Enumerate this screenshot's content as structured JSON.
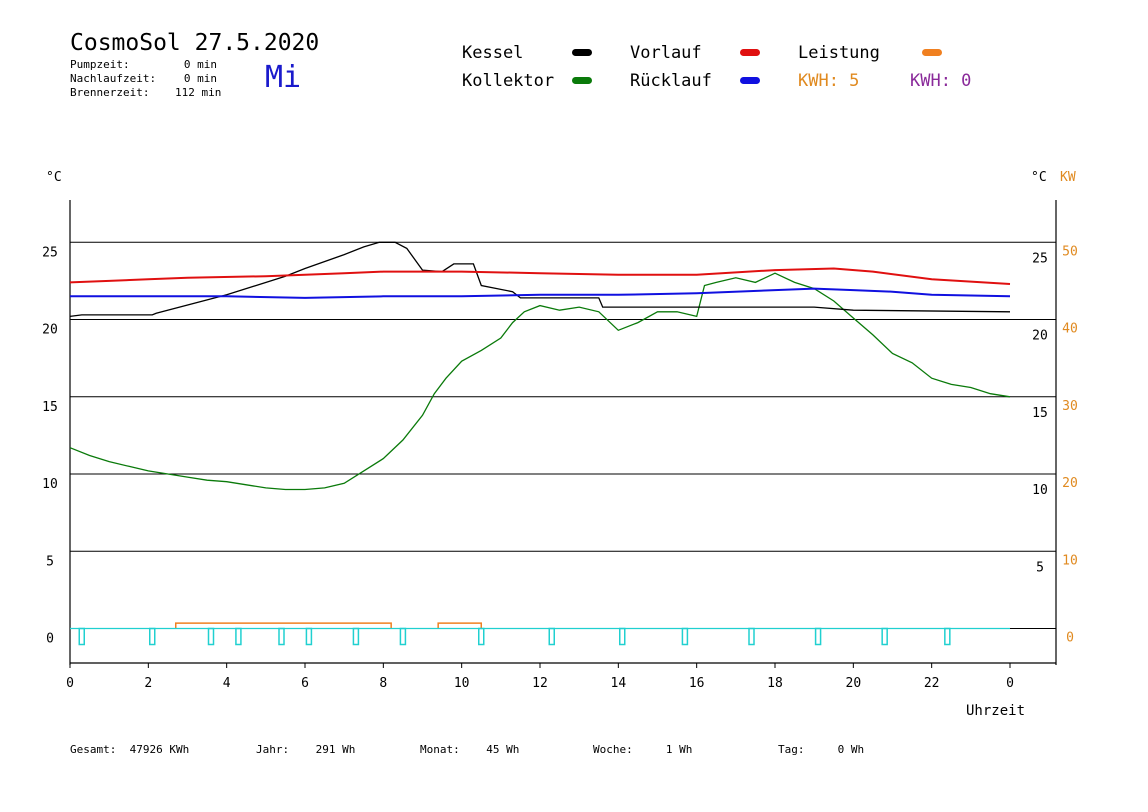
{
  "header": {
    "title": "CosmoSol 27.5.2020",
    "day": "Mi",
    "stats": [
      {
        "label": "Pumpzeit:",
        "value": "0 min"
      },
      {
        "label": "Nachlaufzeit:",
        "value": "0 min"
      },
      {
        "label": "Brennerzeit:",
        "value": "112 min"
      }
    ]
  },
  "legend": {
    "kessel": "Kessel",
    "kollektor": "Kollektor",
    "vorlauf": "Vorlauf",
    "ruecklauf": "Rücklauf",
    "leistung": "Leistung",
    "kwh_solar": "KWH: 5",
    "kwh_other": "KWH: 0"
  },
  "colors": {
    "kessel": "#000000",
    "kollektor": "#0a7a0a",
    "vorlauf": "#e01010",
    "ruecklauf": "#1010e0",
    "leistung": "#f08020",
    "pump": "#20d0d0",
    "kwh_other": "#8a2a9a"
  },
  "footer": [
    {
      "label": "Gesamt:",
      "value": "47926 KWh"
    },
    {
      "label": "Jahr:",
      "value": "291 Wh"
    },
    {
      "label": "Monat:",
      "value": "45 Wh"
    },
    {
      "label": "Woche:",
      "value": "1 Wh"
    },
    {
      "label": "Tag:",
      "value": "0 Wh"
    }
  ],
  "chart_data": {
    "type": "line",
    "xlabel": "Uhrzeit",
    "ylabel_left": "°C",
    "ylabel_right": "°C",
    "ylabel_right2": "KW",
    "xlim": [
      0,
      24
    ],
    "ylim": [
      -2,
      28
    ],
    "x_ticks": [
      "0",
      "2",
      "4",
      "6",
      "8",
      "10",
      "12",
      "14",
      "16",
      "18",
      "20",
      "22",
      "0"
    ],
    "y_ticks_left": [
      0,
      5,
      10,
      15,
      20,
      25
    ],
    "y_ticks_right": [
      5,
      10,
      15,
      20,
      25
    ],
    "y_ticks_kw": [
      0,
      10,
      20,
      30,
      40,
      50
    ],
    "grid_y": [
      0,
      5,
      10,
      15,
      20,
      25
    ],
    "series": [
      {
        "name": "Kollektor",
        "color_key": "kollektor",
        "points": [
          [
            0,
            11.7
          ],
          [
            0.5,
            11.2
          ],
          [
            1,
            10.8
          ],
          [
            1.5,
            10.5
          ],
          [
            2,
            10.2
          ],
          [
            2.5,
            10
          ],
          [
            3,
            9.8
          ],
          [
            3.5,
            9.6
          ],
          [
            4,
            9.5
          ],
          [
            4.5,
            9.3
          ],
          [
            5,
            9.1
          ],
          [
            5.5,
            9
          ],
          [
            6,
            9
          ],
          [
            6.5,
            9.1
          ],
          [
            7,
            9.4
          ],
          [
            7.5,
            10.2
          ],
          [
            8,
            11
          ],
          [
            8.5,
            12.2
          ],
          [
            9,
            13.8
          ],
          [
            9.3,
            15.2
          ],
          [
            9.6,
            16.2
          ],
          [
            10,
            17.3
          ],
          [
            10.5,
            18
          ],
          [
            11,
            18.8
          ],
          [
            11.3,
            19.8
          ],
          [
            11.6,
            20.5
          ],
          [
            12,
            20.9
          ],
          [
            12.5,
            20.6
          ],
          [
            13,
            20.8
          ],
          [
            13.5,
            20.5
          ],
          [
            14,
            19.3
          ],
          [
            14.5,
            19.8
          ],
          [
            15,
            20.5
          ],
          [
            15.5,
            20.5
          ],
          [
            16,
            20.2
          ],
          [
            16.2,
            22.2
          ],
          [
            16.5,
            22.4
          ],
          [
            17,
            22.7
          ],
          [
            17.5,
            22.4
          ],
          [
            18,
            23
          ],
          [
            18.5,
            22.4
          ],
          [
            19,
            22
          ],
          [
            19.5,
            21.2
          ],
          [
            20,
            20.1
          ],
          [
            20.5,
            19
          ],
          [
            21,
            17.8
          ],
          [
            21.5,
            17.2
          ],
          [
            22,
            16.2
          ],
          [
            22.5,
            15.8
          ],
          [
            23,
            15.6
          ],
          [
            23.5,
            15.2
          ],
          [
            24,
            15
          ]
        ]
      },
      {
        "name": "Kessel",
        "color_key": "kessel",
        "points": [
          [
            0,
            20.2
          ],
          [
            0.3,
            20.3
          ],
          [
            2.1,
            20.3
          ],
          [
            2.2,
            20.4
          ],
          [
            4,
            21.6
          ],
          [
            5.5,
            22.8
          ],
          [
            6,
            23.3
          ],
          [
            7,
            24.2
          ],
          [
            7.5,
            24.7
          ],
          [
            7.9,
            25
          ],
          [
            8.3,
            25
          ],
          [
            8.6,
            24.6
          ],
          [
            9,
            23.2
          ],
          [
            9.5,
            23.1
          ],
          [
            9.8,
            23.6
          ],
          [
            10.3,
            23.6
          ],
          [
            10.5,
            22.2
          ],
          [
            11.3,
            21.8
          ],
          [
            11.5,
            21.4
          ],
          [
            13.5,
            21.4
          ],
          [
            13.6,
            20.8
          ],
          [
            18,
            20.8
          ],
          [
            19,
            20.8
          ],
          [
            20,
            20.6
          ],
          [
            24,
            20.5
          ]
        ]
      },
      {
        "name": "Vorlauf",
        "color_key": "vorlauf",
        "points": [
          [
            0,
            22.4
          ],
          [
            1,
            22.5
          ],
          [
            2,
            22.6
          ],
          [
            3,
            22.7
          ],
          [
            5,
            22.8
          ],
          [
            7,
            23
          ],
          [
            8,
            23.1
          ],
          [
            10,
            23.1
          ],
          [
            12,
            23
          ],
          [
            14,
            22.9
          ],
          [
            16,
            22.9
          ],
          [
            18,
            23.2
          ],
          [
            19.5,
            23.3
          ],
          [
            20.5,
            23.1
          ],
          [
            22,
            22.6
          ],
          [
            24,
            22.3
          ]
        ]
      },
      {
        "name": "Rücklauf",
        "color_key": "ruecklauf",
        "points": [
          [
            0,
            21.5
          ],
          [
            2,
            21.5
          ],
          [
            4,
            21.5
          ],
          [
            6,
            21.4
          ],
          [
            8,
            21.5
          ],
          [
            10,
            21.5
          ],
          [
            12,
            21.6
          ],
          [
            14,
            21.6
          ],
          [
            16,
            21.7
          ],
          [
            18,
            21.9
          ],
          [
            19,
            22
          ],
          [
            20,
            21.9
          ],
          [
            21,
            21.8
          ],
          [
            22,
            21.6
          ],
          [
            24,
            21.5
          ]
        ]
      }
    ],
    "leistung_blocks": [
      [
        2.7,
        8.2
      ],
      [
        9.4,
        10.5
      ]
    ],
    "pump_marks": [
      0.3,
      2.1,
      3.6,
      4.3,
      5.4,
      6.1,
      7.3,
      8.5,
      10.5,
      12.3,
      14.1,
      15.7,
      17.4,
      19.1,
      20.8,
      22.4
    ]
  }
}
